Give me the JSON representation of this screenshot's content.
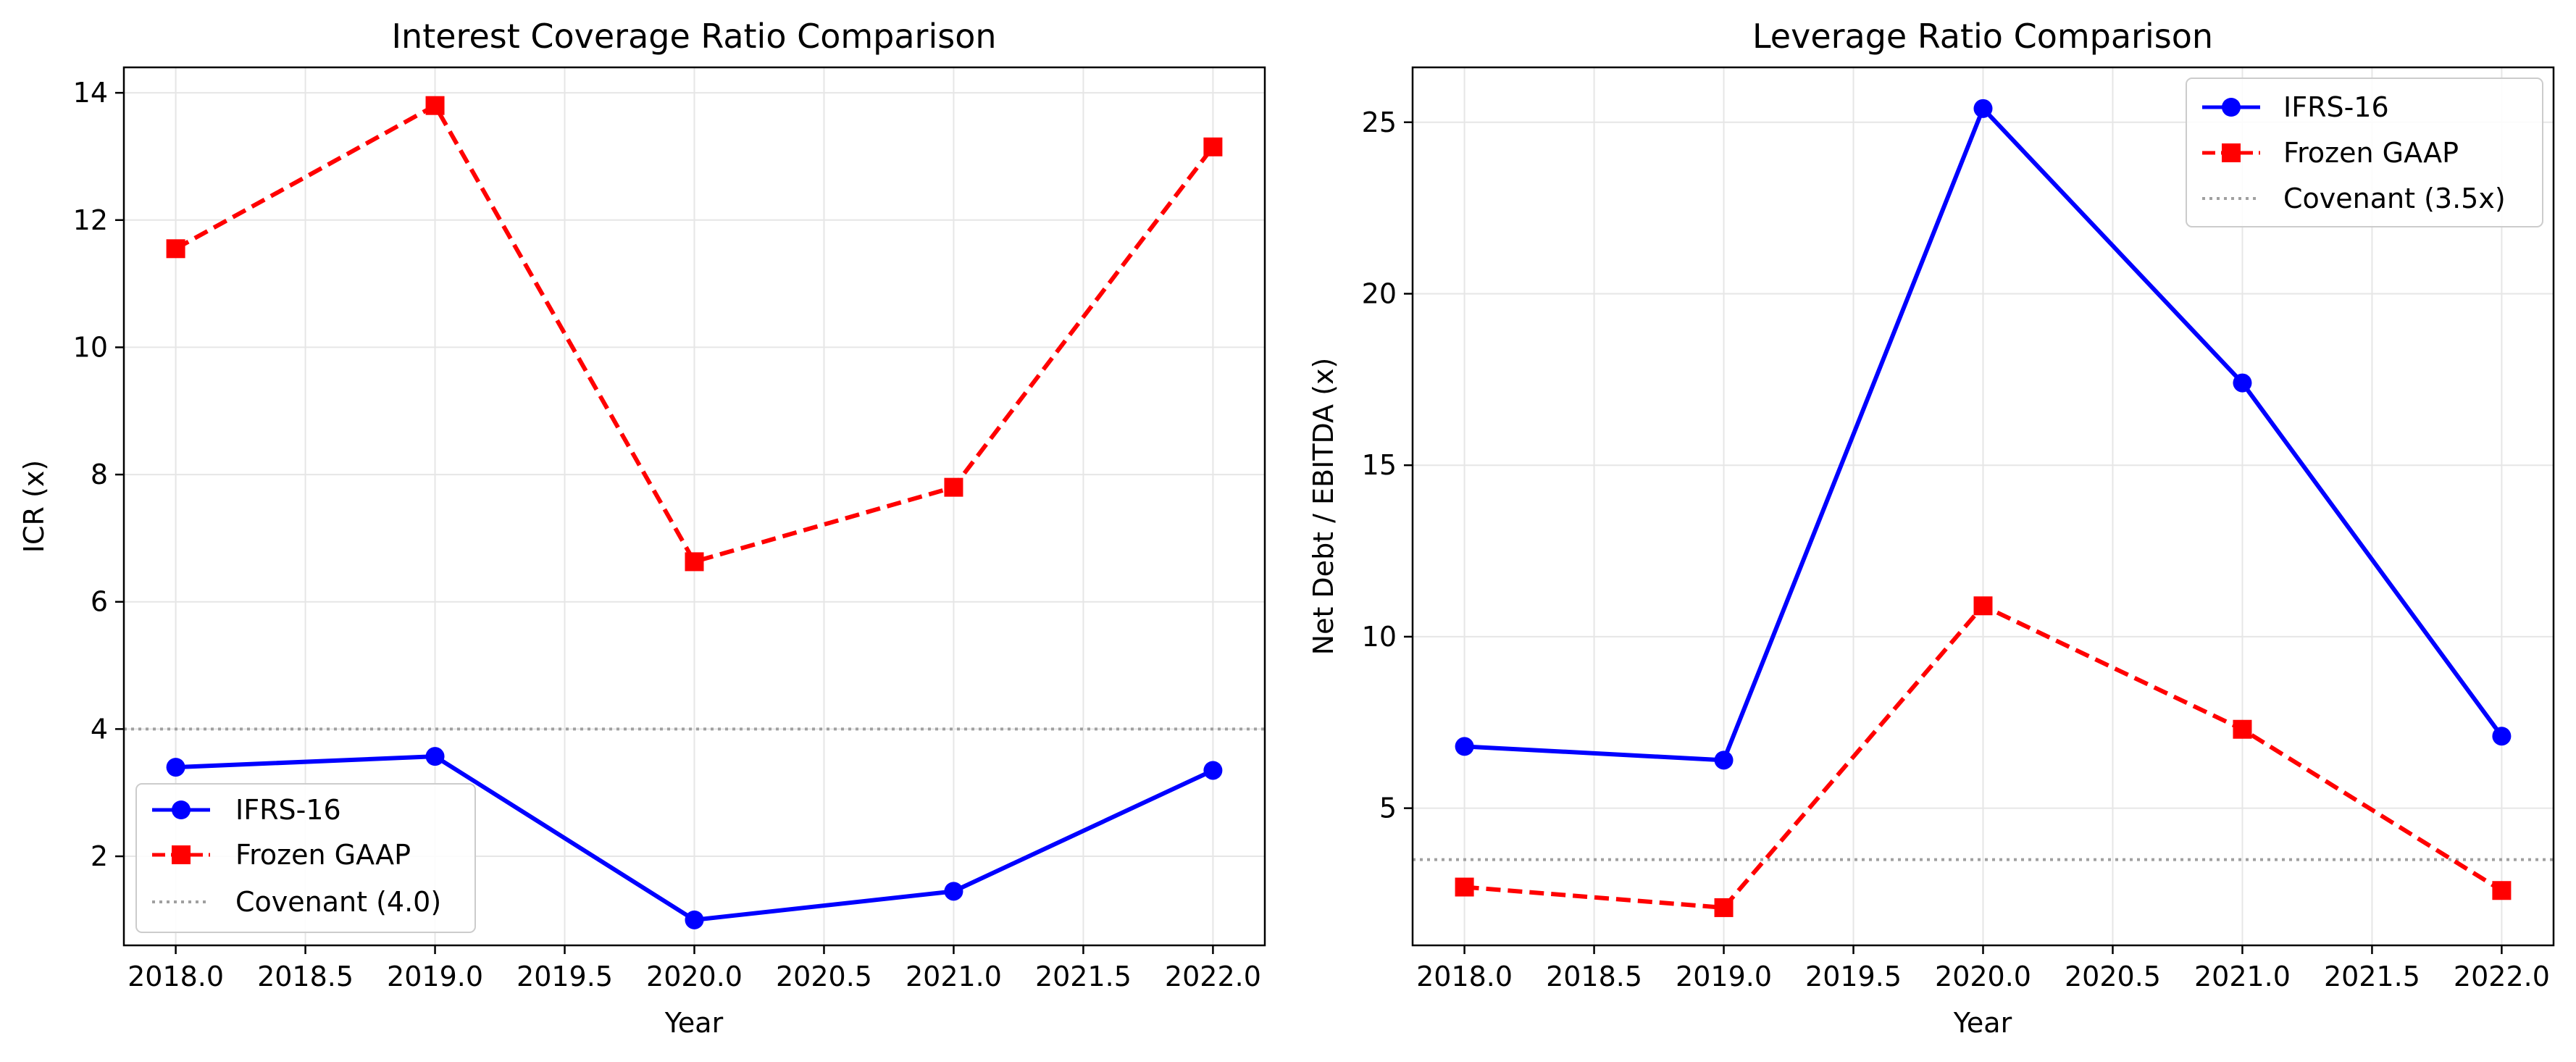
{
  "colors": {
    "ifrs16": "#0000ff",
    "frozen_gaap": "#ff0000",
    "covenant": "#a0a0a0",
    "grid": "#e6e6e6"
  },
  "chart_data": [
    {
      "type": "line",
      "title": "Interest Coverage Ratio Comparison",
      "xlabel": "Year",
      "ylabel": "ICR (x)",
      "x": [
        2018,
        2019,
        2020,
        2021,
        2022
      ],
      "xlim": [
        2017.8,
        2022.2
      ],
      "ylim": [
        0.6,
        14.4
      ],
      "xticks": [
        2018.0,
        2018.5,
        2019.0,
        2019.5,
        2020.0,
        2020.5,
        2021.0,
        2021.5,
        2022.0
      ],
      "xtick_labels": [
        "2018.0",
        "2018.5",
        "2019.0",
        "2019.5",
        "2020.0",
        "2020.5",
        "2021.0",
        "2021.5",
        "2022.0"
      ],
      "yticks": [
        2,
        4,
        6,
        8,
        10,
        12,
        14
      ],
      "ytick_labels": [
        "2",
        "4",
        "6",
        "8",
        "10",
        "12",
        "14"
      ],
      "grid": true,
      "legend_position": "lower-left",
      "series": [
        {
          "name": "IFRS-16",
          "values": [
            3.4,
            3.57,
            1.0,
            1.45,
            3.35
          ],
          "style": "solid",
          "marker": "circle",
          "color": "#0000ff"
        },
        {
          "name": "Frozen GAAP",
          "values": [
            11.55,
            13.8,
            6.63,
            7.8,
            13.15
          ],
          "style": "dashed",
          "marker": "square",
          "color": "#ff0000"
        }
      ],
      "reference_line": {
        "name": "Covenant (4.0)",
        "value": 4.0,
        "style": "dotted",
        "color": "#a0a0a0"
      }
    },
    {
      "type": "line",
      "title": "Leverage Ratio Comparison",
      "xlabel": "Year",
      "ylabel": "Net Debt / EBITDA (x)",
      "x": [
        2018,
        2019,
        2020,
        2021,
        2022
      ],
      "xlim": [
        2017.8,
        2022.2
      ],
      "ylim": [
        1.0,
        26.6
      ],
      "xticks": [
        2018.0,
        2018.5,
        2019.0,
        2019.5,
        2020.0,
        2020.5,
        2021.0,
        2021.5,
        2022.0
      ],
      "xtick_labels": [
        "2018.0",
        "2018.5",
        "2019.0",
        "2019.5",
        "2020.0",
        "2020.5",
        "2021.0",
        "2021.5",
        "2022.0"
      ],
      "yticks": [
        5,
        10,
        15,
        20,
        25
      ],
      "ytick_labels": [
        "5",
        "10",
        "15",
        "20",
        "25"
      ],
      "grid": true,
      "legend_position": "upper-right",
      "series": [
        {
          "name": "IFRS-16",
          "values": [
            6.8,
            6.4,
            25.4,
            17.4,
            7.1
          ],
          "style": "solid",
          "marker": "circle",
          "color": "#0000ff"
        },
        {
          "name": "Frozen GAAP",
          "values": [
            2.7,
            2.1,
            10.9,
            7.3,
            2.6
          ],
          "style": "dashed",
          "marker": "square",
          "color": "#ff0000"
        }
      ],
      "reference_line": {
        "name": "Covenant (3.5x)",
        "value": 3.5,
        "style": "dotted",
        "color": "#a0a0a0"
      }
    }
  ]
}
